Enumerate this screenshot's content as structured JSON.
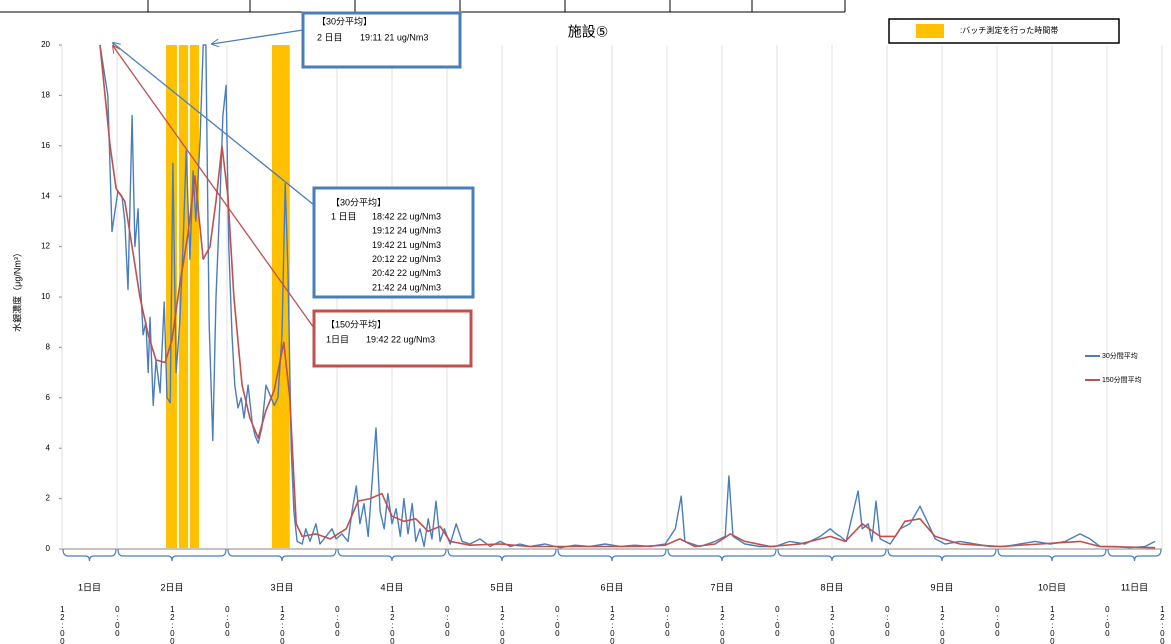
{
  "chart_data": {
    "type": "line",
    "title": "施設⑤",
    "y_label": "水銀濃度（μg/Nm³）",
    "xlim": [
      12,
      252
    ],
    "ylim": [
      0,
      20
    ],
    "yticks": [
      0,
      2,
      4,
      6,
      8,
      10,
      12,
      14,
      16,
      18,
      20
    ],
    "xticks": [
      {
        "value": 12,
        "label": "12:00"
      },
      {
        "value": 24,
        "label": "0:00"
      },
      {
        "value": 36,
        "label": "12:00"
      },
      {
        "value": 48,
        "label": "0:00"
      },
      {
        "value": 60,
        "label": "12:00"
      },
      {
        "value": 72,
        "label": "0:00"
      },
      {
        "value": 84,
        "label": "12:00"
      },
      {
        "value": 96,
        "label": "0:00"
      },
      {
        "value": 108,
        "label": "12:00"
      },
      {
        "value": 120,
        "label": "0:00"
      },
      {
        "value": 132,
        "label": "12:00"
      },
      {
        "value": 144,
        "label": "0:00"
      },
      {
        "value": 156,
        "label": "12:00"
      },
      {
        "value": 168,
        "label": "0:00"
      },
      {
        "value": 180,
        "label": "12:00"
      },
      {
        "value": 192,
        "label": "0:00"
      },
      {
        "value": 204,
        "label": "12:00"
      },
      {
        "value": 216,
        "label": "0:00"
      },
      {
        "value": 228,
        "label": "12:00"
      },
      {
        "value": 240,
        "label": "0:00"
      },
      {
        "value": 252,
        "label": "12:00"
      }
    ],
    "day_labels": [
      "1日目",
      "2日目",
      "3日目",
      "4日目",
      "5日目",
      "6日目",
      "7日目",
      "8日目",
      "9日目",
      "10日目",
      "11日目"
    ],
    "grid": true,
    "legend": "right",
    "batch_legend": ":バッチ測定を行った時間帯",
    "batch_color": "#ffc000",
    "batch_periods": [
      [
        34.7,
        37.1
      ],
      [
        37.5,
        39.5
      ],
      [
        39.9,
        41.9
      ],
      [
        57.8,
        61.7
      ]
    ],
    "series": [
      {
        "name": "30分間平均",
        "color": "#4a7ebb",
        "x": [
          20.3,
          22.0,
          22.9,
          24.2,
          25.1,
          25.7,
          26.4,
          27.3,
          27.9,
          28.6,
          29.0,
          29.7,
          30.3,
          30.8,
          31.2,
          31.9,
          32.5,
          33.4,
          34.3,
          34.9,
          35.6,
          36.2,
          36.9,
          37.7,
          38.4,
          39.1,
          39.9,
          40.6,
          41.2,
          42.1,
          42.8,
          43.4,
          44.1,
          44.9,
          45.6,
          46.5,
          47.1,
          47.8,
          48.4,
          49.1,
          49.7,
          50.4,
          51.1,
          51.7,
          52.6,
          53.5,
          54.1,
          54.8,
          55.6,
          56.5,
          57.4,
          58.3,
          59.1,
          60.0,
          60.7,
          61.3,
          62.0,
          62.6,
          63.3,
          64.4,
          65.2,
          66.1,
          67.4,
          68.3,
          69.6,
          70.9,
          71.8,
          73.1,
          74.4,
          75.3,
          76.2,
          77.0,
          77.9,
          78.8,
          79.6,
          80.5,
          81.4,
          82.3,
          83.1,
          84.0,
          84.9,
          85.8,
          86.6,
          87.5,
          88.4,
          89.2,
          90.1,
          91.0,
          91.9,
          92.7,
          93.6,
          94.5,
          95.4,
          96.7,
          98.0,
          99.3,
          101.0,
          103.2,
          105.4,
          107.6,
          109.8,
          111.9,
          114.1,
          117.4,
          120.7,
          123.9,
          127.2,
          130.5,
          133.8,
          137.0,
          140.3,
          143.6,
          145.8,
          147.1,
          147.9,
          151.2,
          154.5,
          156.7,
          157.5,
          158.4,
          161.0,
          164.3,
          167.6,
          170.8,
          174.1,
          177.4,
          179.6,
          180.9,
          181.8,
          183.1,
          185.7,
          186.6,
          187.9,
          188.7,
          189.6,
          190.5,
          192.7,
          194.9,
          197.0,
          199.2,
          201.0,
          202.5,
          204.7,
          207.9,
          211.2,
          214.5,
          217.8,
          221.0,
          224.3,
          227.6,
          230.9,
          234.1,
          236.3,
          238.5,
          241.8,
          245.0,
          248.3,
          250.5
        ],
        "values": [
          20,
          18,
          12.6,
          14.2,
          14,
          13,
          10.3,
          17.2,
          12,
          13.5,
          11,
          8.5,
          9,
          7,
          9.2,
          5.7,
          7.5,
          6.2,
          9.8,
          6,
          5.8,
          15.3,
          7,
          9,
          12,
          15.8,
          11.5,
          15,
          13,
          16.2,
          20,
          20,
          9,
          4.3,
          10,
          14,
          17.2,
          18.4,
          12,
          8.5,
          6.5,
          5.6,
          6,
          5.2,
          6.5,
          5,
          4.5,
          4.2,
          4.8,
          6.5,
          6.1,
          5.7,
          6,
          8.5,
          14.5,
          11,
          4,
          1.5,
          0.3,
          0.2,
          0.8,
          0.3,
          1,
          0.2,
          0.5,
          0.8,
          0.4,
          0.6,
          0.3,
          1.5,
          2.5,
          1.0,
          1.8,
          0.5,
          2.5,
          4.8,
          1.5,
          0.8,
          2.2,
          1.0,
          1.6,
          0.5,
          2.0,
          0.6,
          1.8,
          0.3,
          0.8,
          0.1,
          1.2,
          0.4,
          1.9,
          0.3,
          0.8,
          0.2,
          1.0,
          0.3,
          0.2,
          0.4,
          0.1,
          0.3,
          0.1,
          0.2,
          0.1,
          0.2,
          0.05,
          0.15,
          0.1,
          0.2,
          0.1,
          0.15,
          0.1,
          0.2,
          0.8,
          2.1,
          0.3,
          0.1,
          0.3,
          0.5,
          2.9,
          0.5,
          0.2,
          0.1,
          0.1,
          0.3,
          0.2,
          0.5,
          0.8,
          0.6,
          0.5,
          0.3,
          2.3,
          0.8,
          1.0,
          0.3,
          1.9,
          0.4,
          0.2,
          0.8,
          1.0,
          1.7,
          1.0,
          0.4,
          0.2,
          0.3,
          0.2,
          0.1,
          0.1,
          0.2,
          0.3,
          0.2,
          0.3,
          0.6,
          0.4,
          0.1,
          0.1,
          0.05,
          0.1,
          0.3
        ]
      },
      {
        "name": "150分間平均",
        "color": "#c0504d",
        "x": [
          20.3,
          22.5,
          23.8,
          25.7,
          27.3,
          29.0,
          30.8,
          32.5,
          34.5,
          36.0,
          37.7,
          39.5,
          41.0,
          42.8,
          44.3,
          45.6,
          46.9,
          48.2,
          49.5,
          51.3,
          53.0,
          54.8,
          56.5,
          58.3,
          60.4,
          61.7,
          63.1,
          64.4,
          67.4,
          70.5,
          74.0,
          76.6,
          79.2,
          81.8,
          84.0,
          86.6,
          89.2,
          91.9,
          94.5,
          96.7,
          101.0,
          107.6,
          114.1,
          120.7,
          129.4,
          138.1,
          143.6,
          146.8,
          150.1,
          154.5,
          157.8,
          161.0,
          166.5,
          173.0,
          179.6,
          182.9,
          186.6,
          190.5,
          193.8,
          195.9,
          199.2,
          202.5,
          207.9,
          216.7,
          225.4,
          234.1,
          238.5,
          250.5
        ],
        "values": [
          20,
          16,
          14.3,
          13.8,
          12,
          10,
          8.5,
          7.5,
          7.4,
          8.3,
          10.5,
          12.5,
          14.8,
          11.5,
          12,
          13.8,
          16,
          14,
          10,
          6.5,
          5.2,
          4.4,
          5.5,
          6.3,
          8.2,
          6,
          1,
          0.5,
          0.6,
          0.4,
          0.8,
          1.9,
          2.0,
          2.2,
          1.3,
          1.1,
          1.2,
          0.7,
          0.9,
          0.3,
          0.15,
          0.2,
          0.1,
          0.1,
          0.1,
          0.1,
          0.15,
          0.4,
          0.1,
          0.2,
          0.6,
          0.3,
          0.1,
          0.2,
          0.5,
          0.3,
          1.0,
          0.5,
          0.5,
          1.1,
          1.2,
          0.5,
          0.2,
          0.1,
          0.2,
          0.3,
          0.1,
          0.05
        ]
      }
    ],
    "annotations": [
      {
        "title": "【30分平均】",
        "day": "2 日目",
        "readings": [
          "19:11 21 ug/Nm3"
        ]
      },
      {
        "title": "【30分平均】",
        "day": "1 日目",
        "readings": [
          "18:42 22 ug/Nm3",
          "19:12 24 ug/Nm3",
          "19:42 21 ug/Nm3",
          "20:12 22 ug/Nm3",
          "20:42 22 ug/Nm3",
          "21:42 24 ug/Nm3"
        ]
      },
      {
        "title": "【150分平均】",
        "day": "1日目",
        "readings": [
          "19:42 22 ug/Nm3"
        ]
      }
    ]
  }
}
